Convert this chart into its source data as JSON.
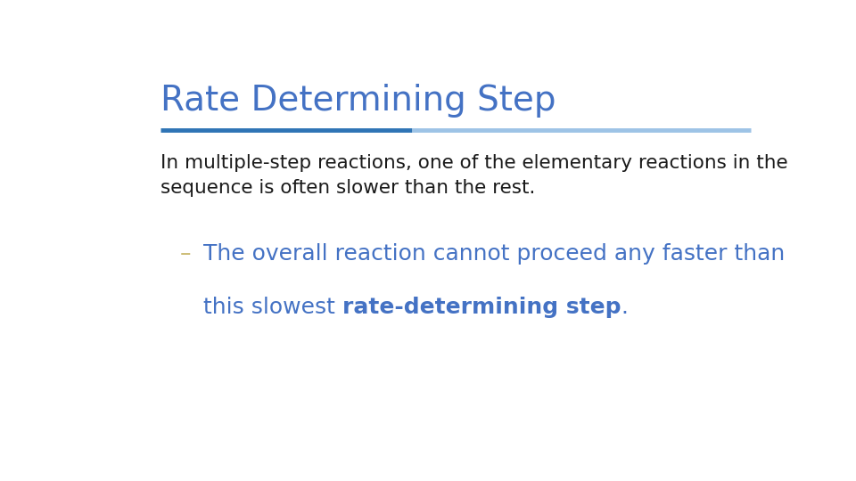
{
  "title": "Rate Determining Step",
  "title_color": "#4472C4",
  "title_fontsize": 28,
  "line_color_dark": "#2E74B5",
  "line_color_light": "#9DC3E6",
  "body_text": "In multiple-step reactions, one of the elementary reactions in the\nsequence is often slower than the rest.",
  "body_color": "#1a1a1a",
  "body_fontsize": 15.5,
  "bullet_dash": "–",
  "bullet_dash_color": "#c9b96e",
  "bullet_color": "#4472C4",
  "bullet_fontsize": 18,
  "bg_color": "#ffffff"
}
